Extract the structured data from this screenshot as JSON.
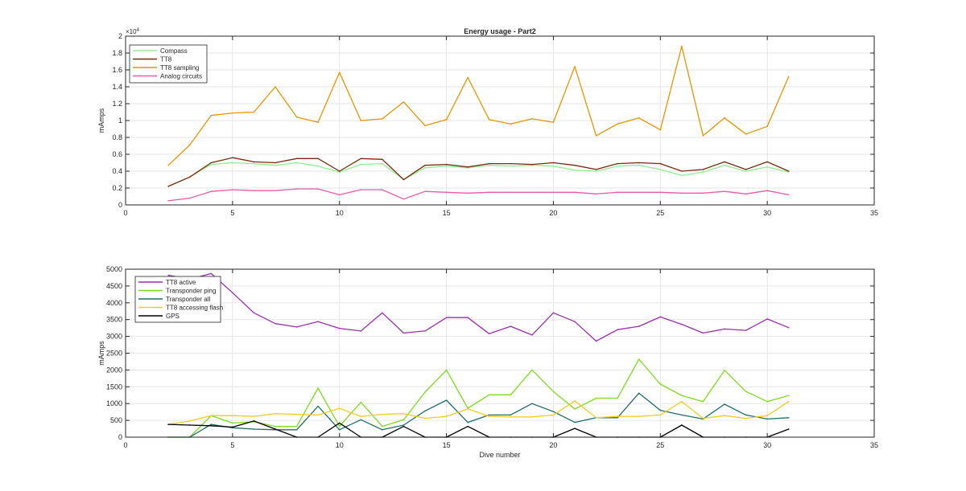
{
  "chart_data": [
    {
      "type": "line",
      "title": "Energy usage - Part2",
      "xlabel": "",
      "ylabel": "mAmps",
      "xlim": [
        0,
        35
      ],
      "ylim": [
        0,
        20000
      ],
      "x_ticks": [
        0,
        5,
        10,
        15,
        20,
        25,
        30,
        35
      ],
      "y_ticks": [
        0,
        2000,
        4000,
        6000,
        8000,
        10000,
        12000,
        14000,
        16000,
        18000,
        20000
      ],
      "y_tick_labels": [
        "0",
        "0.2",
        "0.4",
        "0.6",
        "0.8",
        "1",
        "1.2",
        "1.4",
        "1.6",
        "1.8",
        "2"
      ],
      "y_exponent_label": "×10",
      "y_exponent_power": "4",
      "grid": true,
      "legend_position": "top-left",
      "x": [
        2,
        3,
        4,
        5,
        6,
        7,
        8,
        9,
        10,
        11,
        12,
        13,
        14,
        15,
        16,
        17,
        18,
        19,
        20,
        21,
        22,
        23,
        24,
        25,
        26,
        27,
        28,
        29,
        30,
        31
      ],
      "series": [
        {
          "name": "Compass",
          "color": "#90ee90",
          "values": [
            2200,
            3300,
            4800,
            5000,
            4900,
            4700,
            5000,
            4600,
            3900,
            4800,
            4900,
            3000,
            4400,
            4600,
            4400,
            4700,
            4600,
            4700,
            4600,
            4100,
            4000,
            4600,
            4700,
            4200,
            3500,
            3900,
            4700,
            4000,
            4500,
            3900
          ]
        },
        {
          "name": "TT8",
          "color": "#7a2a0c",
          "values": [
            2200,
            3300,
            5000,
            5600,
            5100,
            5000,
            5500,
            5500,
            4000,
            5500,
            5400,
            3000,
            4700,
            4800,
            4500,
            4900,
            4900,
            4800,
            5000,
            4700,
            4200,
            4900,
            5000,
            4900,
            4000,
            4200,
            5100,
            4200,
            5100,
            4000
          ]
        },
        {
          "name": "TT8 sampling",
          "color": "#e69500",
          "values": [
            4700,
            7100,
            10600,
            10900,
            11000,
            14000,
            10400,
            9800,
            15700,
            10000,
            10200,
            12200,
            9400,
            10100,
            15100,
            10100,
            9600,
            10200,
            9800,
            16400,
            8200,
            9600,
            10300,
            8900,
            18800,
            8200,
            10300,
            8400,
            9300,
            15200
          ]
        },
        {
          "name": "Analog circuits",
          "color": "#e85aa8",
          "values": [
            500,
            800,
            1600,
            1800,
            1700,
            1700,
            1900,
            1900,
            1200,
            1800,
            1800,
            700,
            1600,
            1500,
            1400,
            1500,
            1500,
            1500,
            1500,
            1500,
            1300,
            1500,
            1500,
            1500,
            1400,
            1400,
            1600,
            1300,
            1700,
            1200
          ]
        }
      ]
    },
    {
      "type": "line",
      "title": "",
      "xlabel": "Dive number",
      "ylabel": "mAmps",
      "xlim": [
        0,
        35
      ],
      "ylim": [
        0,
        5000
      ],
      "x_ticks": [
        0,
        5,
        10,
        15,
        20,
        25,
        30,
        35
      ],
      "y_ticks": [
        0,
        500,
        1000,
        1500,
        2000,
        2500,
        3000,
        3500,
        4000,
        4500,
        5000
      ],
      "y_tick_labels": [
        "0",
        "500",
        "1000",
        "1500",
        "2000",
        "2500",
        "3000",
        "3500",
        "4000",
        "4500",
        "5000"
      ],
      "grid": true,
      "legend_position": "top-left",
      "x": [
        2,
        3,
        4,
        5,
        6,
        7,
        8,
        9,
        10,
        11,
        12,
        13,
        14,
        15,
        16,
        17,
        18,
        19,
        20,
        21,
        22,
        23,
        24,
        25,
        26,
        27,
        28,
        29,
        30,
        31
      ],
      "series": [
        {
          "name": "TT8 active",
          "color": "#9b2fae",
          "values": [
            4820,
            4700,
            4870,
            4300,
            3700,
            3380,
            3280,
            3440,
            3240,
            3160,
            3700,
            3100,
            3160,
            3560,
            3560,
            3080,
            3300,
            3040,
            3700,
            3440,
            2860,
            3200,
            3300,
            3580,
            3360,
            3100,
            3220,
            3180,
            3520,
            3260
          ]
        },
        {
          "name": "Transponder ping",
          "color": "#7cdc1c",
          "values": [
            0,
            0,
            640,
            420,
            460,
            320,
            320,
            1460,
            320,
            1040,
            320,
            520,
            1340,
            2000,
            860,
            1260,
            1260,
            2000,
            1360,
            840,
            1160,
            1160,
            2320,
            1580,
            1240,
            1060,
            1990,
            1360,
            1060,
            1240
          ]
        },
        {
          "name": "Transponder all",
          "color": "#1f6e66",
          "values": [
            0,
            0,
            380,
            280,
            240,
            220,
            220,
            920,
            220,
            520,
            220,
            360,
            780,
            1100,
            440,
            660,
            660,
            1000,
            760,
            440,
            580,
            580,
            1310,
            800,
            660,
            540,
            980,
            660,
            540,
            580
          ]
        },
        {
          "name": "TT8 accessing flash",
          "color": "#f2cb1f",
          "values": [
            380,
            480,
            640,
            640,
            620,
            700,
            680,
            660,
            860,
            620,
            680,
            700,
            560,
            620,
            840,
            620,
            600,
            600,
            660,
            1080,
            580,
            620,
            620,
            660,
            1060,
            560,
            640,
            560,
            640,
            1060
          ]
        },
        {
          "name": "GPS",
          "color": "#000000",
          "values": [
            380,
            360,
            340,
            300,
            480,
            240,
            0,
            0,
            420,
            0,
            0,
            320,
            0,
            0,
            320,
            0,
            0,
            0,
            0,
            260,
            0,
            0,
            0,
            0,
            360,
            0,
            0,
            0,
            0,
            240
          ]
        }
      ]
    }
  ]
}
